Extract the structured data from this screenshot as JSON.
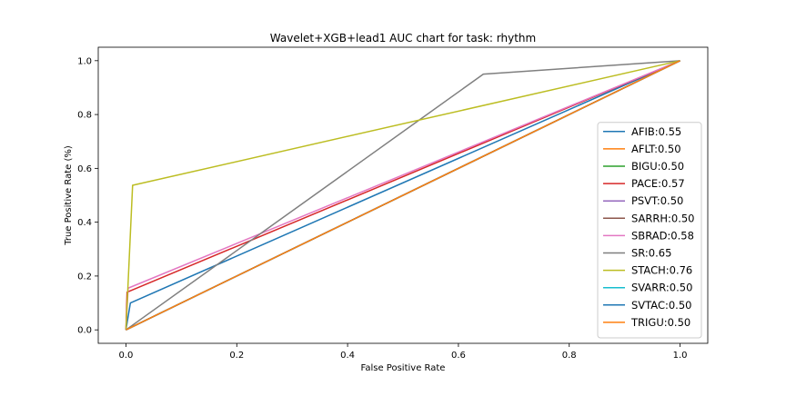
{
  "chart_data": {
    "type": "line",
    "title": "Wavelet+XGB+lead1 AUC chart for task: rhythm",
    "xlabel": "False Positive Rate",
    "ylabel": "True Positive Rate (%)",
    "xlim": [
      -0.05,
      1.05
    ],
    "ylim": [
      -0.05,
      1.05
    ],
    "xticks": [
      0.0,
      0.2,
      0.4,
      0.6,
      0.8,
      1.0
    ],
    "yticks": [
      0.0,
      0.2,
      0.4,
      0.6,
      0.8,
      1.0
    ],
    "xtick_labels": [
      "0.0",
      "0.2",
      "0.4",
      "0.6",
      "0.8",
      "1.0"
    ],
    "ytick_labels": [
      "0.0",
      "0.2",
      "0.4",
      "0.6",
      "0.8",
      "1.0"
    ],
    "grid": false,
    "legend_position": "lower-right",
    "series": [
      {
        "name": "AFIB:0.55",
        "color": "#1f77b4",
        "x": [
          0.0,
          0.008,
          1.0
        ],
        "y": [
          0.0,
          0.1,
          1.0
        ]
      },
      {
        "name": "AFLT:0.50",
        "color": "#ff7f0e",
        "x": [
          0.0,
          1.0
        ],
        "y": [
          0.0,
          1.0
        ]
      },
      {
        "name": "BIGU:0.50",
        "color": "#2ca02c",
        "x": [
          0.0,
          1.0
        ],
        "y": [
          0.0,
          1.0
        ]
      },
      {
        "name": "PACE:0.57",
        "color": "#d62728",
        "x": [
          0.0,
          0.002,
          0.002,
          1.0
        ],
        "y": [
          0.0,
          0.14,
          0.14,
          1.0
        ]
      },
      {
        "name": "PSVT:0.50",
        "color": "#9467bd",
        "x": [
          0.0,
          1.0
        ],
        "y": [
          0.0,
          1.0
        ]
      },
      {
        "name": "SARRH:0.50",
        "color": "#8c564b",
        "x": [
          0.0,
          1.0
        ],
        "y": [
          0.0,
          1.0
        ]
      },
      {
        "name": "SBRAD:0.58",
        "color": "#e377c2",
        "x": [
          0.0,
          0.004,
          1.0
        ],
        "y": [
          0.0,
          0.155,
          1.0
        ]
      },
      {
        "name": "SR:0.65",
        "color": "#7f7f7f",
        "x": [
          0.0,
          0.645,
          1.0
        ],
        "y": [
          0.0,
          0.95,
          1.0
        ]
      },
      {
        "name": "STACH:0.76",
        "color": "#bcbd22",
        "x": [
          0.0,
          0.012,
          1.0
        ],
        "y": [
          0.0,
          0.537,
          1.0
        ]
      },
      {
        "name": "SVARR:0.50",
        "color": "#17becf",
        "x": [
          0.0,
          1.0
        ],
        "y": [
          0.0,
          1.0
        ]
      },
      {
        "name": "SVTAC:0.50",
        "color": "#1f77b4",
        "x": [
          0.0,
          1.0
        ],
        "y": [
          0.0,
          1.0
        ]
      },
      {
        "name": "TRIGU:0.50",
        "color": "#ff7f0e",
        "x": [
          0.0,
          1.0
        ],
        "y": [
          0.0,
          1.0
        ]
      }
    ]
  }
}
